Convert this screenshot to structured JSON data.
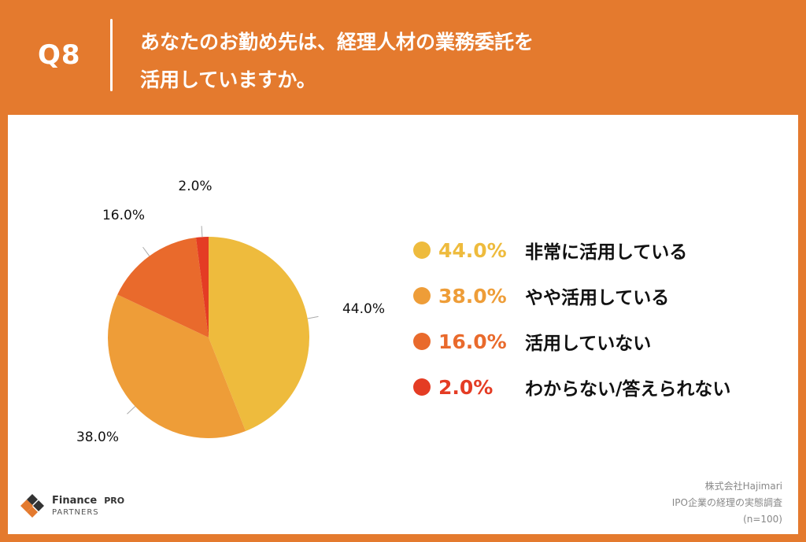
{
  "header": {
    "qnum": "Q8",
    "title": "あなたのお勤め先は、経理人材の業務委託を\n活用していますか。"
  },
  "chart_data": {
    "type": "pie",
    "slices": [
      {
        "label": "非常に活用している",
        "value": 44.0,
        "display": "44.0%",
        "color": "#EEBB3D"
      },
      {
        "label": "やや活用している",
        "value": 38.0,
        "display": "38.0%",
        "color": "#EE9D38"
      },
      {
        "label": "活用していない",
        "value": 16.0,
        "display": "16.0%",
        "color": "#E96A2C"
      },
      {
        "label": "わからない/答えられない",
        "value": 2.0,
        "display": "2.0%",
        "color": "#E43C24"
      }
    ],
    "legend_position": "right"
  },
  "source": {
    "line1": "株式会社Hajimari",
    "line2": "IPO企業の経理の実態調査",
    "line3": "(n=100)"
  },
  "logo": {
    "main": "Finance",
    "pro": "PRO",
    "sub": "PARTNERS"
  }
}
